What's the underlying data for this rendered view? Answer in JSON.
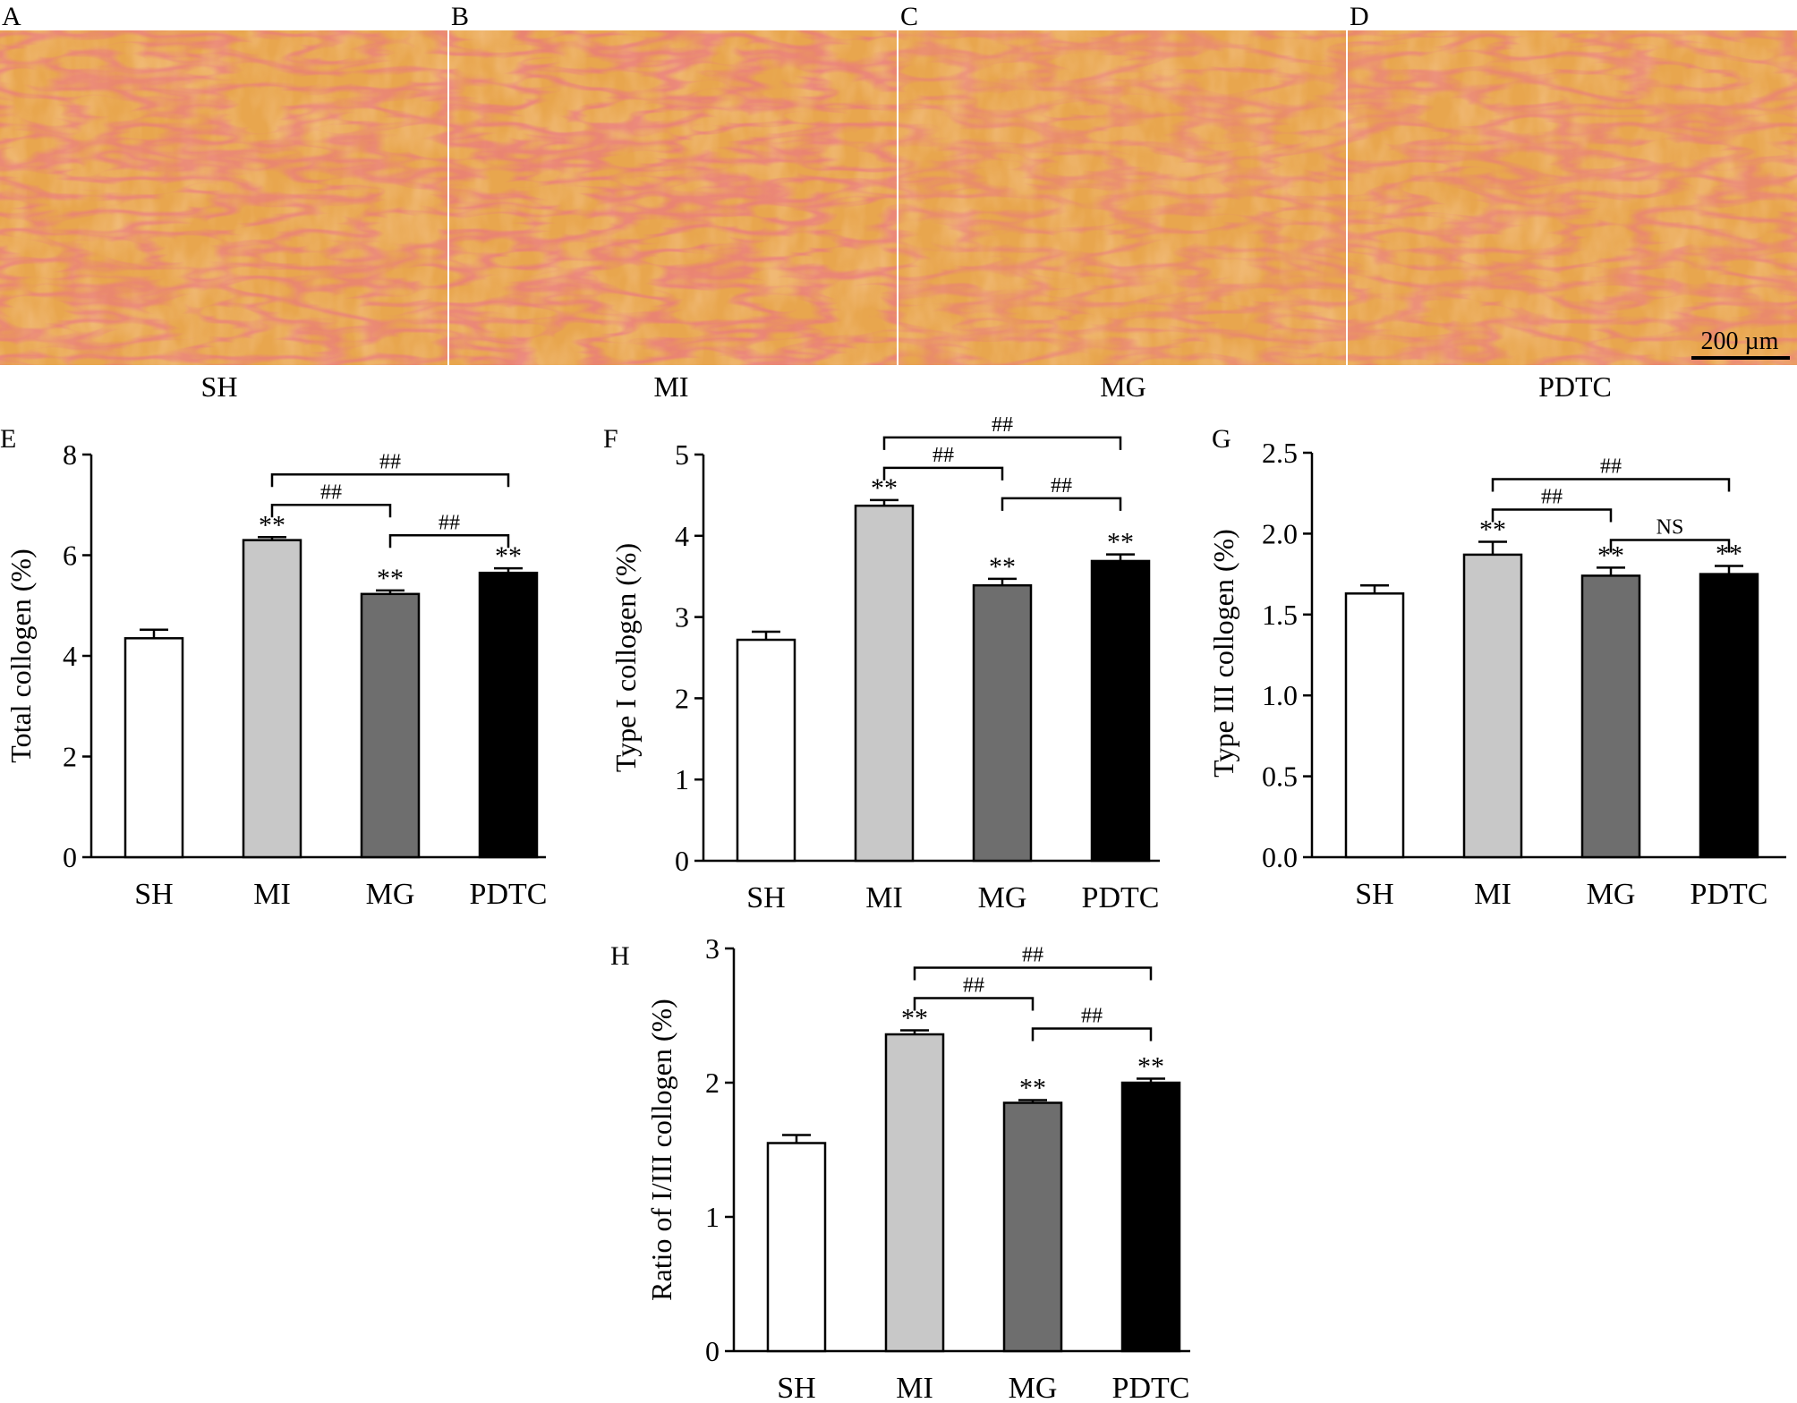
{
  "micrographs": [
    {
      "letter": "A",
      "group": "SH",
      "scale_bar": ""
    },
    {
      "letter": "B",
      "group": "MI",
      "scale_bar": ""
    },
    {
      "letter": "C",
      "group": "MG",
      "scale_bar": ""
    },
    {
      "letter": "D",
      "group": "PDTC",
      "scale_bar": "200 µm"
    }
  ],
  "colors": {
    "tissue": "#e8a64e",
    "tissue_light": "#f0c77e",
    "collagen_stain": "#d42a3f",
    "background_stain": "#f2c7d2",
    "bar_SH": "#ffffff",
    "bar_MI": "#c8c8c8",
    "bar_MG": "#6e6e6e",
    "bar_PDTC": "#000000"
  },
  "chart_data": [
    {
      "letter": "E",
      "type": "bar",
      "title": "",
      "xlabel": "",
      "ylabel": "Total collogen (%)",
      "categories": [
        "SH",
        "MI",
        "MG",
        "PDTC"
      ],
      "values": [
        4.35,
        6.3,
        5.23,
        5.65
      ],
      "errors": [
        0.17,
        0.06,
        0.07,
        0.09
      ],
      "ylim": [
        0,
        8
      ],
      "yticks": [
        "0",
        "2",
        "4",
        "6",
        "8"
      ],
      "significance": [
        "",
        "**",
        "**",
        "**"
      ],
      "comparisons": [
        {
          "from": "MI",
          "to": "MG",
          "label": "##"
        },
        {
          "from": "MG",
          "to": "PDTC",
          "label": "##"
        },
        {
          "from": "MI",
          "to": "PDTC",
          "label": "##"
        }
      ]
    },
    {
      "letter": "F",
      "type": "bar",
      "title": "",
      "xlabel": "",
      "ylabel": "Type I collogen (%)",
      "categories": [
        "SH",
        "MI",
        "MG",
        "PDTC"
      ],
      "values": [
        2.72,
        4.37,
        3.39,
        3.69
      ],
      "errors": [
        0.1,
        0.07,
        0.08,
        0.08
      ],
      "ylim": [
        0,
        5
      ],
      "yticks": [
        "0",
        "1",
        "2",
        "3",
        "4",
        "5"
      ],
      "significance": [
        "",
        "**",
        "**",
        "**"
      ],
      "comparisons": [
        {
          "from": "MI",
          "to": "MG",
          "label": "##"
        },
        {
          "from": "MG",
          "to": "PDTC",
          "label": "##"
        },
        {
          "from": "MI",
          "to": "PDTC",
          "label": "##"
        }
      ]
    },
    {
      "letter": "G",
      "type": "bar",
      "title": "",
      "xlabel": "",
      "ylabel": "Type III collogen (%)",
      "categories": [
        "SH",
        "MI",
        "MG",
        "PDTC"
      ],
      "values": [
        1.63,
        1.87,
        1.74,
        1.75
      ],
      "errors": [
        0.05,
        0.08,
        0.05,
        0.05
      ],
      "ylim": [
        0,
        2.5
      ],
      "yticks": [
        "0.0",
        "0.5",
        "1.0",
        "1.5",
        "2.0",
        "2.5"
      ],
      "significance": [
        "",
        "**",
        "**",
        "**"
      ],
      "comparisons": [
        {
          "from": "MI",
          "to": "MG",
          "label": "##"
        },
        {
          "from": "MG",
          "to": "PDTC",
          "label": "NS"
        },
        {
          "from": "MI",
          "to": "PDTC",
          "label": "##"
        }
      ]
    },
    {
      "letter": "H",
      "type": "bar",
      "title": "",
      "xlabel": "",
      "ylabel": "Ratio of I/III collogen (%)",
      "categories": [
        "SH",
        "MI",
        "MG",
        "PDTC"
      ],
      "values": [
        1.55,
        2.36,
        1.85,
        2.0
      ],
      "errors": [
        0.06,
        0.03,
        0.02,
        0.03
      ],
      "ylim": [
        0,
        3
      ],
      "yticks": [
        "0",
        "1",
        "2",
        "3"
      ],
      "significance": [
        "",
        "**",
        "**",
        "**"
      ],
      "comparisons": [
        {
          "from": "MI",
          "to": "MG",
          "label": "##"
        },
        {
          "from": "MG",
          "to": "PDTC",
          "label": "##"
        },
        {
          "from": "MI",
          "to": "PDTC",
          "label": "##"
        }
      ]
    }
  ]
}
